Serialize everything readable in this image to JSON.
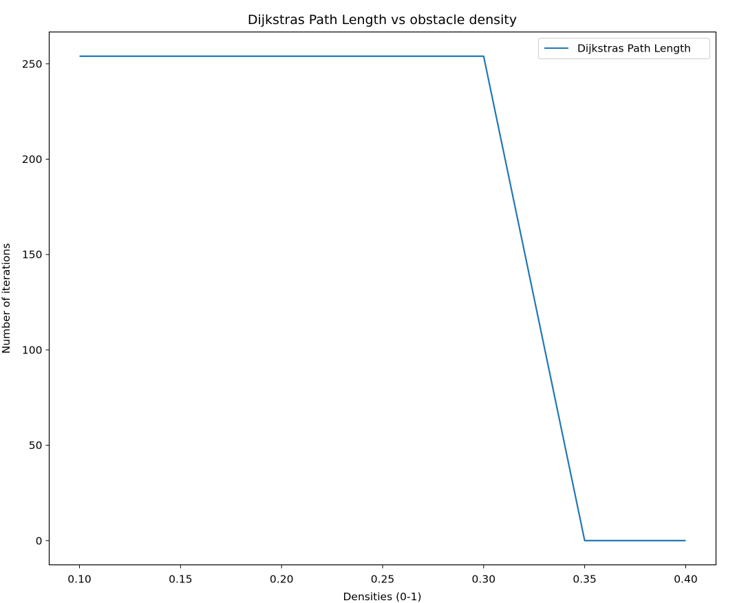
{
  "chart_data": {
    "type": "line",
    "title": "Dijkstras Path Length vs obstacle density",
    "xlabel": "Densities (0-1)",
    "ylabel": "Number of iterations",
    "xlim": [
      0.085,
      0.415
    ],
    "ylim": [
      -12.7,
      266.7
    ],
    "xticks": [
      0.1,
      0.15,
      0.2,
      0.25,
      0.3,
      0.35,
      0.4
    ],
    "xtick_labels": [
      "0.10",
      "0.15",
      "0.20",
      "0.25",
      "0.30",
      "0.35",
      "0.40"
    ],
    "yticks": [
      0,
      50,
      100,
      150,
      200,
      250
    ],
    "ytick_labels": [
      "0",
      "50",
      "100",
      "150",
      "200",
      "250"
    ],
    "grid": false,
    "legend": "top-right",
    "series": [
      {
        "name": "Dijkstras Path Length",
        "color": "#1f77b4",
        "x": [
          0.1,
          0.15,
          0.2,
          0.25,
          0.3,
          0.35,
          0.4
        ],
        "y": [
          254,
          254,
          254,
          254,
          254,
          0,
          0
        ]
      }
    ]
  }
}
